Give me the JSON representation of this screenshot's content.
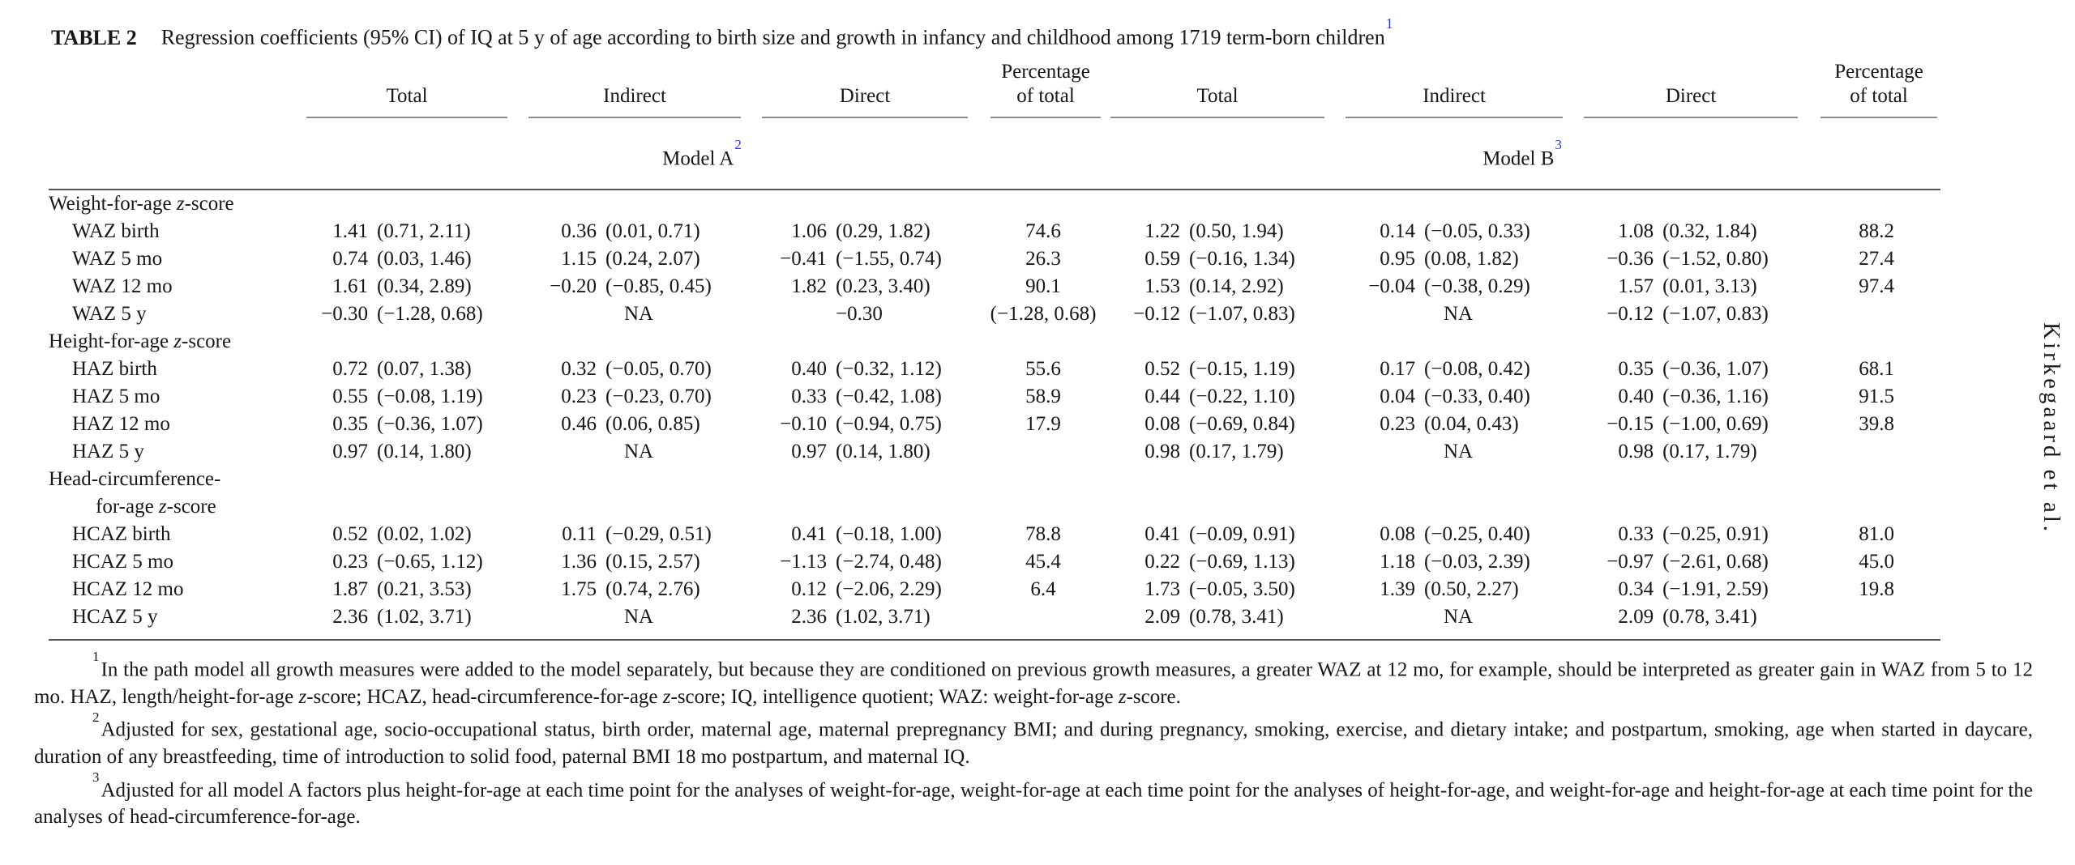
{
  "page": {
    "running_head": "Kirkegaard et al."
  },
  "caption": {
    "label": "TABLE 2",
    "text": "Regression coefficients (95% CI) of IQ at 5 y of age according to birth size and growth in infancy and childhood among 1719 term-born children",
    "footnote_ref": "1"
  },
  "header": {
    "col_groups": [
      "Total",
      "Indirect",
      "Direct"
    ],
    "pct_lines": [
      "Percentage",
      "of total"
    ],
    "models": [
      {
        "label": "Model A",
        "footnote_ref": "2"
      },
      {
        "label": "Model B",
        "footnote_ref": "3"
      }
    ]
  },
  "sections": [
    {
      "header_lines": [
        "Weight-for-age z-score"
      ],
      "rows": [
        {
          "label": "WAZ birth",
          "a": [
            "1.41",
            "(0.71, 2.11)",
            "0.36",
            "(0.01, 0.71)",
            "1.06",
            "(0.29, 1.82)",
            "74.6"
          ],
          "b": [
            "1.22",
            "(0.50, 1.94)",
            "0.14",
            "(−0.05, 0.33)",
            "1.08",
            "(0.32, 1.84)",
            "88.2"
          ]
        },
        {
          "label": "WAZ 5 mo",
          "a": [
            "0.74",
            "(0.03, 1.46)",
            "1.15",
            "(0.24, 2.07)",
            "−0.41",
            "(−1.55, 0.74)",
            "26.3"
          ],
          "b": [
            "0.59",
            "(−0.16, 1.34)",
            "0.95",
            "(0.08, 1.82)",
            "−0.36",
            "(−1.52, 0.80)",
            "27.4"
          ]
        },
        {
          "label": "WAZ 12 mo",
          "a": [
            "1.61",
            "(0.34, 2.89)",
            "−0.20",
            "(−0.85, 0.45)",
            "1.82",
            "(0.23, 3.40)",
            "90.1"
          ],
          "b": [
            "1.53",
            "(0.14, 2.92)",
            "−0.04",
            "(−0.38, 0.29)",
            "1.57",
            "(0.01, 3.13)",
            "97.4"
          ]
        },
        {
          "label": "WAZ 5 y",
          "a": [
            "−0.30",
            "(−1.28, 0.68)",
            "NA",
            "",
            "",
            "−0.30",
            "(−1.28, 0.68)"
          ],
          "b": [
            "−0.12",
            "(−1.07, 0.83)",
            "NA",
            "",
            "−0.12",
            "(−1.07, 0.83)",
            ""
          ]
        }
      ]
    },
    {
      "header_lines": [
        "Height-for-age z-score"
      ],
      "rows": [
        {
          "label": "HAZ birth",
          "a": [
            "0.72",
            "(0.07, 1.38)",
            "0.32",
            "(−0.05, 0.70)",
            "0.40",
            "(−0.32, 1.12)",
            "55.6"
          ],
          "b": [
            "0.52",
            "(−0.15, 1.19)",
            "0.17",
            "(−0.08, 0.42)",
            "0.35",
            "(−0.36, 1.07)",
            "68.1"
          ]
        },
        {
          "label": "HAZ 5 mo",
          "a": [
            "0.55",
            "(−0.08, 1.19)",
            "0.23",
            "(−0.23, 0.70)",
            "0.33",
            "(−0.42, 1.08)",
            "58.9"
          ],
          "b": [
            "0.44",
            "(−0.22, 1.10)",
            "0.04",
            "(−0.33, 0.40)",
            "0.40",
            "(−0.36, 1.16)",
            "91.5"
          ]
        },
        {
          "label": "HAZ 12 mo",
          "a": [
            "0.35",
            "(−0.36, 1.07)",
            "0.46",
            "(0.06, 0.85)",
            "−0.10",
            "(−0.94, 0.75)",
            "17.9"
          ],
          "b": [
            "0.08",
            "(−0.69, 0.84)",
            "0.23",
            "(0.04, 0.43)",
            "−0.15",
            "(−1.00, 0.69)",
            "39.8"
          ]
        },
        {
          "label": "HAZ 5 y",
          "a": [
            "0.97",
            "(0.14, 1.80)",
            "NA",
            "",
            "0.97",
            "(0.14, 1.80)",
            ""
          ],
          "b": [
            "0.98",
            "(0.17, 1.79)",
            "NA",
            "",
            "0.98",
            "(0.17, 1.79)",
            ""
          ]
        }
      ]
    },
    {
      "header_lines": [
        "Head-circumference-",
        "for-age z-score"
      ],
      "rows": [
        {
          "label": "HCAZ birth",
          "a": [
            "0.52",
            "(0.02, 1.02)",
            "0.11",
            "(−0.29, 0.51)",
            "0.41",
            "(−0.18, 1.00)",
            "78.8"
          ],
          "b": [
            "0.41",
            "(−0.09, 0.91)",
            "0.08",
            "(−0.25, 0.40)",
            "0.33",
            "(−0.25, 0.91)",
            "81.0"
          ]
        },
        {
          "label": "HCAZ 5 mo",
          "a": [
            "0.23",
            "(−0.65, 1.12)",
            "1.36",
            "(0.15, 2.57)",
            "−1.13",
            "(−2.74, 0.48)",
            "45.4"
          ],
          "b": [
            "0.22",
            "(−0.69, 1.13)",
            "1.18",
            "(−0.03, 2.39)",
            "−0.97",
            "(−2.61, 0.68)",
            "45.0"
          ]
        },
        {
          "label": "HCAZ 12 mo",
          "a": [
            "1.87",
            "(0.21, 3.53)",
            "1.75",
            "(0.74, 2.76)",
            "0.12",
            "(−2.06, 2.29)",
            "6.4"
          ],
          "b": [
            "1.73",
            "(−0.05, 3.50)",
            "1.39",
            "(0.50, 2.27)",
            "0.34",
            "(−1.91, 2.59)",
            "19.8"
          ]
        },
        {
          "label": "HCAZ 5 y",
          "a": [
            "2.36",
            "(1.02, 3.71)",
            "NA",
            "",
            "2.36",
            "(1.02, 3.71)",
            ""
          ],
          "b": [
            "2.09",
            "(0.78, 3.41)",
            "NA",
            "",
            "2.09",
            "(0.78, 3.41)",
            ""
          ]
        }
      ]
    }
  ],
  "footnotes": [
    {
      "marker": "1",
      "text": "In the path model all growth measures were added to the model separately, but because they are conditioned on previous growth measures, a greater WAZ at 12 mo, for example, should be interpreted as greater gain in WAZ from 5 to 12 mo. HAZ, length/height-for-age z-score; HCAZ, head-circumference-for-age z-score; IQ, intelligence quotient; WAZ: weight-for-age z-score."
    },
    {
      "marker": "2",
      "text": "Adjusted for sex, gestational age, socio-occupational status, birth order, maternal age, maternal prepregnancy BMI; and during pregnancy, smoking, exercise, and dietary intake; and postpartum, smoking, age when started in daycare, duration of any breastfeeding, time of introduction to solid food, paternal BMI 18 mo postpartum, and maternal IQ."
    },
    {
      "marker": "3",
      "text": "Adjusted for all model A factors plus height-for-age at each time point for the analyses of weight-for-age, weight-for-age at each time point for the analyses of height-for-age, and weight-for-age and height-for-age at each time point for the analyses of head-circumference-for-age."
    }
  ]
}
